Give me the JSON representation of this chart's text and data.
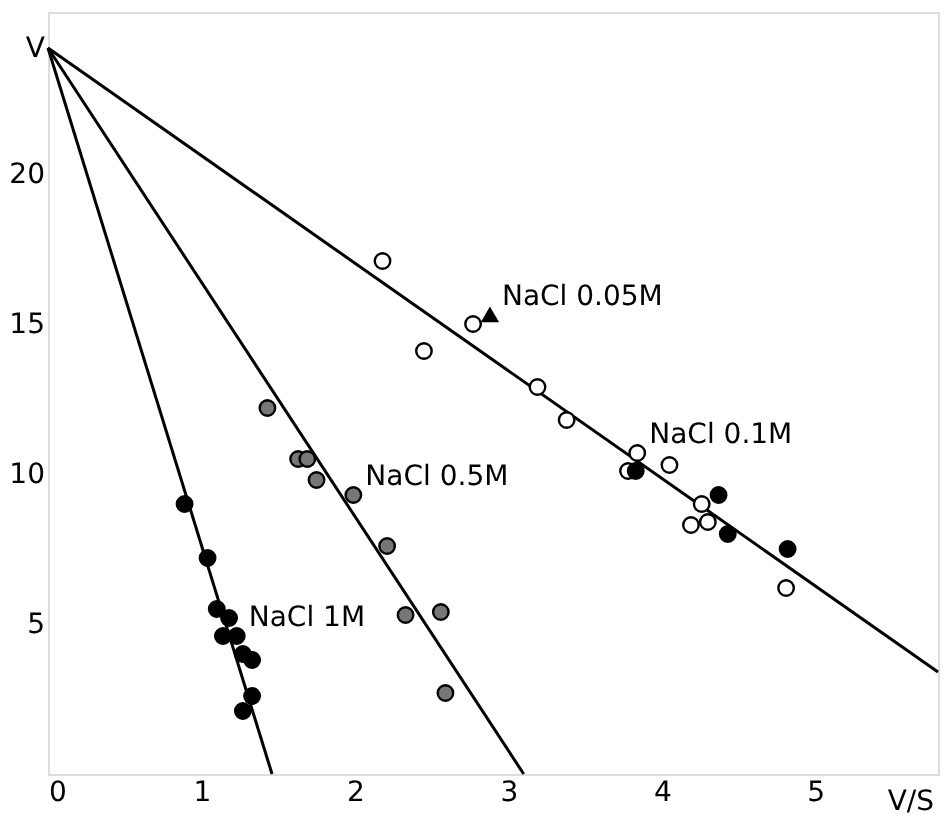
{
  "chart_data": {
    "type": "scatter",
    "xlabel": "V/S",
    "xlim": [
      0,
      5.8
    ],
    "ylim": [
      0,
      25.4
    ],
    "xticks": [
      0,
      1,
      2,
      3,
      4,
      5
    ],
    "yticks": [
      5,
      10,
      15,
      20,
      {
        "value": 24.2,
        "label": "V"
      }
    ],
    "grid": false,
    "series": [
      {
        "type": "line",
        "color": "#000000",
        "marker": "none",
        "x": [
          0,
          1.46
        ],
        "values": [
          24.2,
          0
        ]
      },
      {
        "type": "line",
        "color": "#000000",
        "marker": "none",
        "x": [
          0,
          3.1
        ],
        "values": [
          24.2,
          0
        ]
      },
      {
        "type": "line",
        "color": "#000000",
        "marker": "none",
        "x": [
          0,
          5.8
        ],
        "values": [
          24.2,
          3.4
        ]
      },
      {
        "color": "#000000",
        "marker": "circle",
        "x": [
          0.89,
          1.04,
          1.1,
          1.18,
          1.14,
          1.23,
          1.27,
          1.33,
          1.33,
          1.27
        ],
        "values": [
          9.0,
          7.2,
          5.5,
          5.2,
          4.6,
          4.6,
          4.0,
          3.8,
          2.6,
          2.1
        ]
      },
      {
        "color": "#777777",
        "marker": "circle",
        "x": [
          1.43,
          1.63,
          1.69,
          1.75,
          1.99,
          2.21,
          2.33,
          2.56,
          2.59
        ],
        "values": [
          12.2,
          10.5,
          10.5,
          9.8,
          9.3,
          7.6,
          5.3,
          5.4,
          2.7
        ]
      },
      {
        "color": "#ffffff",
        "marker": "circle",
        "x": [
          2.18,
          2.45,
          2.77,
          3.19,
          3.38,
          3.84,
          3.78,
          4.05,
          4.26,
          4.19,
          4.3,
          4.81
        ],
        "values": [
          17.1,
          14.1,
          15.0,
          12.9,
          11.8,
          10.7,
          10.1,
          10.3,
          9.0,
          8.3,
          8.4,
          6.2
        ]
      },
      {
        "color": "#000000",
        "marker": "circle",
        "x": [
          3.83,
          4.37,
          4.43,
          4.82
        ],
        "values": [
          10.1,
          9.3,
          8.0,
          7.5
        ]
      },
      {
        "color": "#000000",
        "marker": "triangle",
        "x": [
          2.88
        ],
        "values": [
          15.3
        ]
      }
    ],
    "annotations": [
      {
        "text": "NaCl 0.05M",
        "x": 2.88,
        "y": 15.3
      },
      {
        "text": "NaCl 0.1M",
        "x": 3.84,
        "y": 10.7
      },
      {
        "text": "NaCl 0.5M",
        "x": 1.99,
        "y": 9.3
      },
      {
        "text": "NaCl 1M",
        "x": 1.23,
        "y": 4.6
      }
    ]
  }
}
